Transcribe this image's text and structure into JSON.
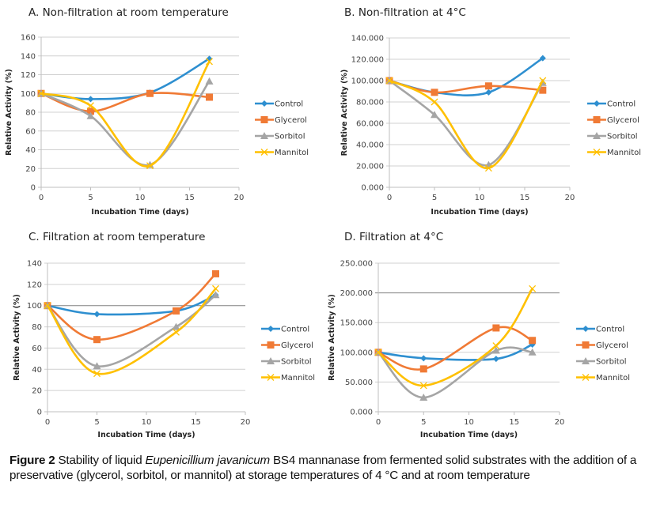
{
  "chart_data": [
    {
      "id": "A",
      "type": "line",
      "title": "A. Non-filtration at room temperature",
      "xlabel": "Incubation Time (days)",
      "ylabel": "Relative Activity (%)",
      "xlim": [
        0,
        20
      ],
      "xticks": [
        0,
        5,
        10,
        15,
        20
      ],
      "ylim": [
        0,
        160
      ],
      "yticks": [
        0,
        20,
        40,
        60,
        80,
        100,
        120,
        140,
        160
      ],
      "ytick_format": "int",
      "grid": true,
      "legend": "right",
      "x": [
        0,
        5,
        11,
        17
      ],
      "series": [
        {
          "name": "Control",
          "color": "#2E8FD0",
          "marker": "diamond",
          "values": [
            100,
            94,
            101,
            137
          ]
        },
        {
          "name": "Glycerol",
          "color": "#F07A35",
          "marker": "square",
          "values": [
            100,
            81,
            100,
            96
          ]
        },
        {
          "name": "Sorbitol",
          "color": "#A5A5A5",
          "marker": "triangle",
          "values": [
            100,
            76,
            24,
            113
          ]
        },
        {
          "name": "Mannitol",
          "color": "#FFC000",
          "marker": "x",
          "values": [
            100,
            87,
            23,
            134
          ]
        }
      ]
    },
    {
      "id": "B",
      "type": "line",
      "title": "B. Non-filtration at 4°C",
      "xlabel": "Incubation Time (days)",
      "ylabel": "Relative Activity (%)",
      "xlim": [
        0,
        20
      ],
      "xticks": [
        0,
        5,
        10,
        15,
        20
      ],
      "ylim": [
        0,
        140
      ],
      "yticks": [
        0,
        20,
        40,
        60,
        80,
        100,
        120,
        140
      ],
      "ytick_format": "3dec",
      "grid": true,
      "legend": "right",
      "x": [
        0,
        5,
        11,
        17
      ],
      "series": [
        {
          "name": "Control",
          "color": "#2E8FD0",
          "marker": "diamond",
          "values": [
            100,
            89,
            89,
            121
          ]
        },
        {
          "name": "Glycerol",
          "color": "#F07A35",
          "marker": "square",
          "values": [
            100,
            89,
            95,
            91
          ]
        },
        {
          "name": "Sorbitol",
          "color": "#A5A5A5",
          "marker": "triangle",
          "values": [
            100,
            68,
            21,
            98
          ]
        },
        {
          "name": "Mannitol",
          "color": "#FFC000",
          "marker": "x",
          "values": [
            100,
            80,
            18,
            100
          ]
        }
      ]
    },
    {
      "id": "C",
      "type": "line",
      "title": "C. Filtration at room temperature",
      "xlabel": "Incubation Time (days)",
      "ylabel": "Relative Activity (%)",
      "xlim": [
        0,
        20
      ],
      "xticks": [
        0,
        5,
        10,
        15,
        20
      ],
      "ylim": [
        0,
        140
      ],
      "yticks": [
        0,
        20,
        40,
        60,
        80,
        100,
        120,
        140
      ],
      "ytick_format": "int",
      "grid": true,
      "highlight_gridline": 100,
      "legend": "right",
      "x": [
        0,
        5,
        13,
        17
      ],
      "series": [
        {
          "name": "Control",
          "color": "#2E8FD0",
          "marker": "diamond",
          "values": [
            100,
            92,
            95,
            110
          ]
        },
        {
          "name": "Glycerol",
          "color": "#F07A35",
          "marker": "square",
          "values": [
            100,
            68,
            95,
            130
          ]
        },
        {
          "name": "Sorbitol",
          "color": "#A5A5A5",
          "marker": "triangle",
          "values": [
            100,
            43,
            80,
            110
          ]
        },
        {
          "name": "Mannitol",
          "color": "#FFC000",
          "marker": "x",
          "values": [
            100,
            36,
            75,
            116
          ]
        }
      ]
    },
    {
      "id": "D",
      "type": "line",
      "title": "D. Filtration at 4°C",
      "xlabel": "Incubation Time (days)",
      "ylabel": "Relative Activity (%)",
      "xlim": [
        0,
        20
      ],
      "xticks": [
        0,
        5,
        10,
        15,
        20
      ],
      "ylim": [
        0,
        250
      ],
      "yticks": [
        0,
        50,
        100,
        150,
        200,
        250
      ],
      "ytick_format": "3dec",
      "grid": true,
      "highlight_gridline": 200,
      "legend": "right",
      "x": [
        0,
        5,
        13,
        17
      ],
      "series": [
        {
          "name": "Control",
          "color": "#2E8FD0",
          "marker": "diamond",
          "values": [
            100,
            90,
            89,
            113
          ]
        },
        {
          "name": "Glycerol",
          "color": "#F07A35",
          "marker": "square",
          "values": [
            100,
            72,
            141,
            120
          ]
        },
        {
          "name": "Sorbitol",
          "color": "#A5A5A5",
          "marker": "triangle",
          "values": [
            100,
            24,
            103,
            100
          ]
        },
        {
          "name": "Mannitol",
          "color": "#FFC000",
          "marker": "x",
          "values": [
            100,
            44,
            111,
            207
          ]
        }
      ]
    }
  ],
  "caption": {
    "label": "Figure 2",
    "text_before_italic": " Stability of liquid ",
    "italic": "Eupenicillium javanicum",
    "text_after_italic": " BS4 mannanase from fermented solid substrates with the addition of a preservative (glycerol, sorbitol, or mannitol) at storage temperatures of 4 °C and at room temperature"
  }
}
